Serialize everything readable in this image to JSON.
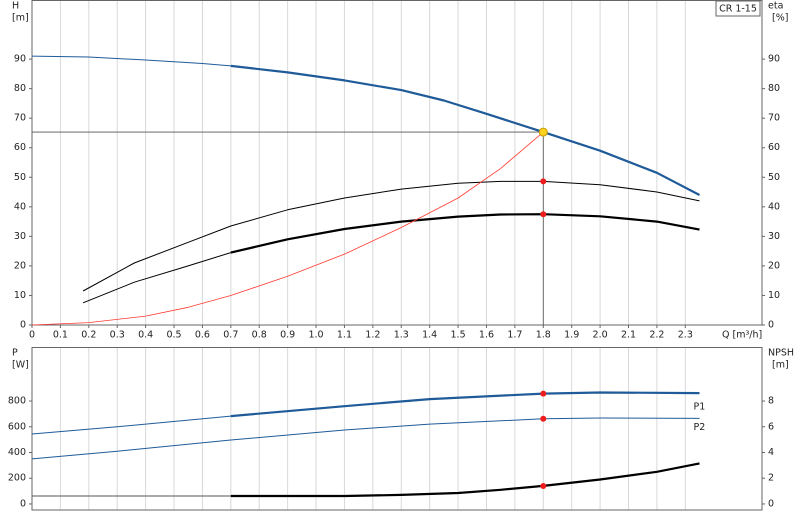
{
  "chart_data": [
    {
      "type": "line",
      "title": "CR 1-15",
      "ylabel": [
        "H",
        "[m]"
      ],
      "y2label": [
        "eta",
        "[%]"
      ],
      "xlabel": "Q [m³/h]",
      "xlim": [
        0,
        2.57
      ],
      "ylim": [
        0,
        110
      ],
      "y2lim": [
        0,
        110
      ],
      "xticks": [
        0,
        0.1,
        0.2,
        0.3,
        0.4,
        0.5,
        0.6,
        0.7,
        0.8,
        0.9,
        {
          "value": 1,
          "label": "1.0"
        },
        1.1,
        1.2,
        1.3,
        1.4,
        1.5,
        1.6,
        1.7,
        1.8,
        1.9,
        {
          "value": 2,
          "label": "2.0"
        },
        2.1,
        2.2,
        2.3
      ],
      "yticks": [
        0,
        10,
        20,
        30,
        40,
        50,
        60,
        70,
        80,
        90
      ],
      "y2ticks": [
        0,
        10,
        20,
        30,
        40,
        50,
        60,
        70,
        80,
        90
      ],
      "grid": true,
      "series": [
        {
          "color": "#1f5b99",
          "width": 1,
          "x": [
            0,
            0.2,
            0.4,
            0.6,
            0.7
          ],
          "values": [
            91,
            90.7,
            89.7,
            88.5,
            87.7
          ]
        },
        {
          "color": "#1f5b99",
          "width": 2.2,
          "x": [
            0.7,
            0.9,
            1.1,
            1.3,
            1.45,
            1.6,
            1.8,
            2.0,
            2.2,
            2.35
          ],
          "values": [
            87.7,
            85.5,
            82.8,
            79.5,
            76,
            71.5,
            65.3,
            59,
            51.5,
            44
          ]
        },
        {
          "color": "#000000",
          "width": 1,
          "axis": "y2",
          "x": [
            0.18,
            0.36,
            0.55,
            0.7,
            0.9,
            1.1,
            1.3,
            1.5,
            1.65,
            1.8,
            2.0,
            2.2,
            2.35
          ],
          "values": [
            11.5,
            21,
            28,
            33.5,
            39,
            43,
            46,
            48,
            48.6,
            48.6,
            47.5,
            45,
            42
          ]
        },
        {
          "color": "#000000",
          "width": 1,
          "axis": "y2",
          "x": [
            0.18,
            0.36,
            0.55,
            0.7
          ],
          "values": [
            7.5,
            14.5,
            20,
            24.5
          ]
        },
        {
          "color": "#000000",
          "width": 2.2,
          "axis": "y2",
          "x": [
            0.7,
            0.9,
            1.1,
            1.3,
            1.5,
            1.65,
            1.8,
            2.0,
            2.2,
            2.35
          ],
          "values": [
            24.5,
            29,
            32.5,
            35,
            36.7,
            37.4,
            37.5,
            36.8,
            35,
            32.3
          ]
        },
        {
          "color": "#ff3b30",
          "width": 0.8,
          "x": [
            0,
            0.2,
            0.4,
            0.55,
            0.7,
            0.9,
            1.1,
            1.3,
            1.5,
            1.65,
            1.8
          ],
          "values": [
            0,
            0.8,
            3,
            6,
            10,
            16.5,
            24,
            33,
            43,
            53,
            65.3
          ]
        }
      ],
      "reference": {
        "x": 1.8,
        "y": 65.3
      },
      "markers": [
        {
          "x": 1.8,
          "y": 65.3,
          "color": "#ffd21f"
        },
        {
          "x": 1.8,
          "y": 48.6,
          "color": "#ee1c1c",
          "axis": "y2"
        },
        {
          "x": 1.8,
          "y": 37.5,
          "color": "#ee1c1c",
          "axis": "y2"
        }
      ]
    },
    {
      "type": "line",
      "ylabel": [
        "P",
        "[W]"
      ],
      "y2label": [
        "NPSH",
        "[m]"
      ],
      "xlim": [
        0,
        2.57
      ],
      "ylim": [
        -47,
        1220
      ],
      "y2lim": [
        -0.47,
        12.2
      ],
      "yticks": [
        0,
        200,
        400,
        600,
        800
      ],
      "y2ticks": [
        0,
        2,
        4,
        6,
        8
      ],
      "grid": true,
      "series": [
        {
          "name": "P1",
          "color": "#1f5b99",
          "width": 1,
          "x": [
            0,
            0.3,
            0.7
          ],
          "values": [
            544,
            600,
            683
          ]
        },
        {
          "color": "#1f5b99",
          "width": 2.2,
          "x": [
            0.7,
            1.1,
            1.4,
            1.8,
            2.0,
            2.35
          ],
          "values": [
            683,
            760,
            815,
            858,
            866,
            862
          ]
        },
        {
          "name": "P2",
          "color": "#1f5b99",
          "width": 1,
          "x": [
            0,
            0.3,
            0.7,
            1.1,
            1.4,
            1.8,
            2.0,
            2.35
          ],
          "values": [
            350,
            410,
            497,
            575,
            621,
            662,
            668,
            665
          ]
        },
        {
          "color": "#555555",
          "width": 1,
          "axis": "y2",
          "x": [
            0,
            0.7
          ],
          "values": [
            0.62,
            0.62
          ]
        },
        {
          "color": "#000000",
          "width": 2.2,
          "axis": "y2",
          "x": [
            0.7,
            1.1,
            1.3,
            1.5,
            1.65,
            1.8,
            2.0,
            2.2,
            2.35
          ],
          "values": [
            0.62,
            0.62,
            0.7,
            0.85,
            1.1,
            1.4,
            1.9,
            2.5,
            3.15
          ]
        }
      ],
      "markers": [
        {
          "x": 1.8,
          "y": 858,
          "color": "#ee1c1c"
        },
        {
          "x": 1.8,
          "y": 662,
          "color": "#ee1c1c"
        },
        {
          "x": 1.8,
          "y": 1.4,
          "color": "#ee1c1c",
          "axis": "y2"
        }
      ]
    }
  ]
}
